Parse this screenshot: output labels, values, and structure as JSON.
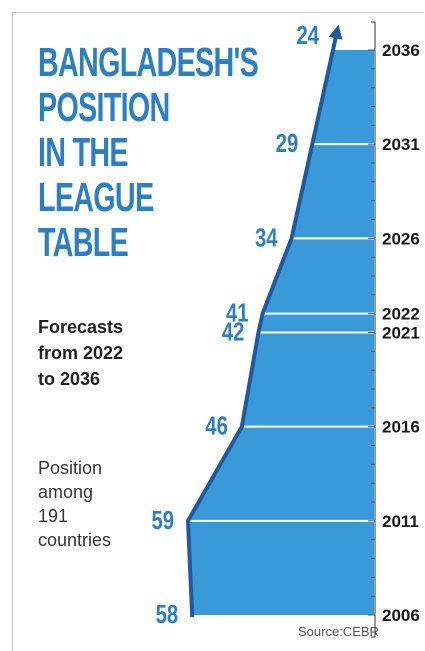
{
  "title_lines": [
    "BANGLADESH'S",
    "POSITION",
    "IN THE",
    "LEAGUE",
    "TABLE"
  ],
  "subtitle_lines": [
    "Forecasts",
    "from 2022",
    "to 2036"
  ],
  "note_lines": [
    "Position",
    "among",
    "191",
    "countries"
  ],
  "source": "Source:CEBR",
  "colors": {
    "accent": "#2b7fc4",
    "fill": "#3a9ad9",
    "line": "#1d5aa0"
  },
  "chart_data": {
    "type": "area",
    "title": "BANGLADESH'S POSITION IN THE LEAGUE TABLE",
    "subtitle": "Forecasts from 2022 to 2036",
    "xlabel": "",
    "ylabel": "Position among 191 countries",
    "x": [
      "2006",
      "2011",
      "2016",
      "2021",
      "2022",
      "2026",
      "2031",
      "2036"
    ],
    "series": [
      {
        "values": [
          58,
          59,
          46,
          42,
          41,
          34,
          29,
          24
        ]
      }
    ],
    "orientation": "vertical-years",
    "grid": true
  }
}
